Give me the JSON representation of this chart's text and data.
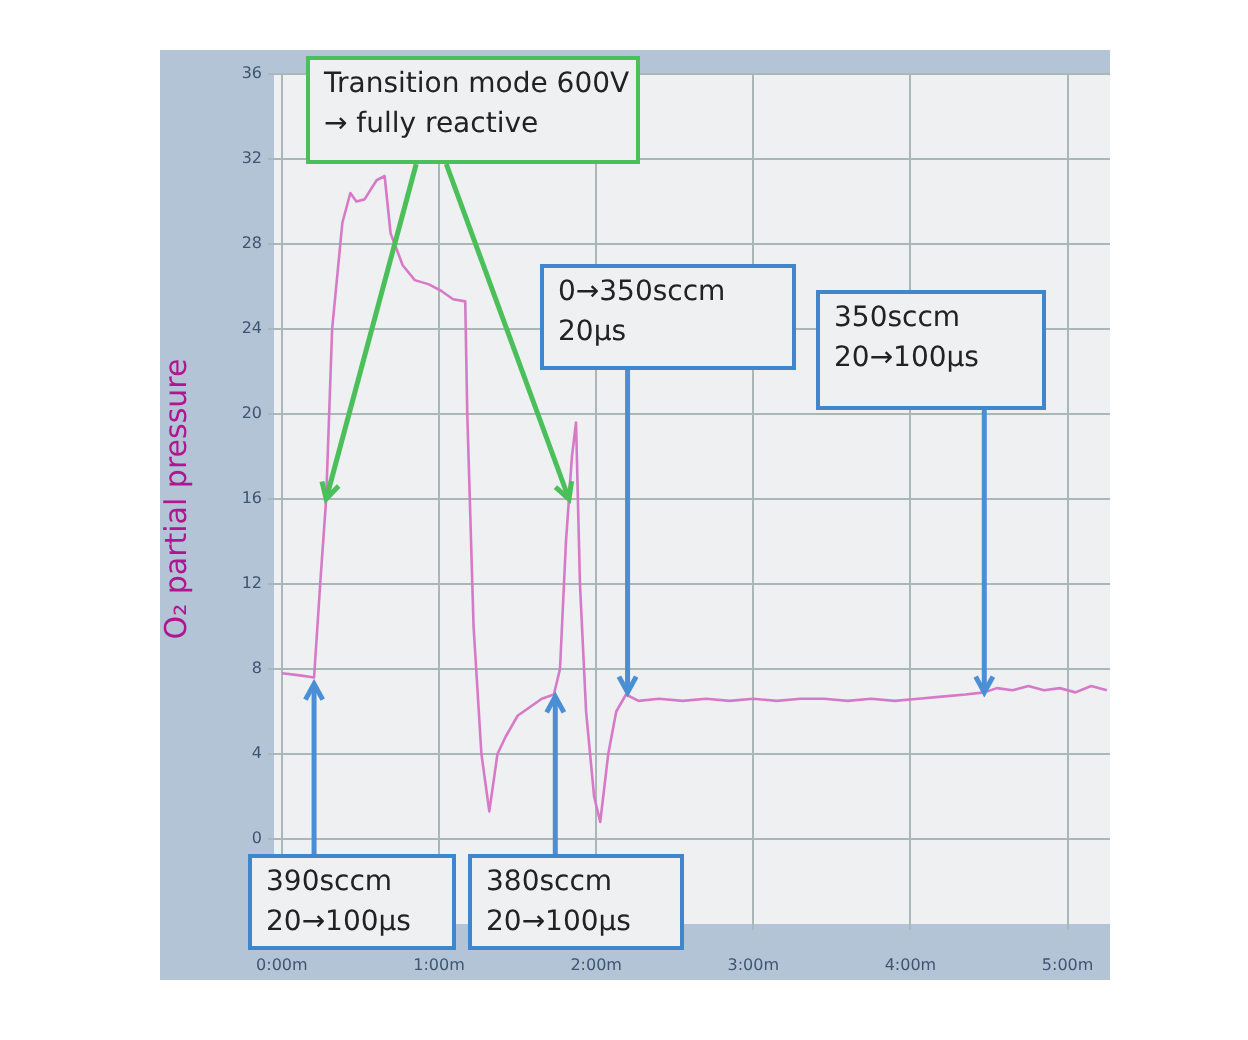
{
  "chart_data": {
    "type": "line",
    "ylabel": "O₂ partial pressure",
    "x": [
      0,
      0.115,
      0.205,
      0.244,
      0.282,
      0.32,
      0.385,
      0.436,
      0.474,
      0.526,
      0.603,
      0.654,
      0.692,
      0.769,
      0.846,
      0.936,
      1.013,
      1.09,
      1.167,
      1.18,
      1.22,
      1.27,
      1.32,
      1.372,
      1.423,
      1.5,
      1.577,
      1.654,
      1.731,
      1.77,
      1.808,
      1.846,
      1.872,
      1.897,
      1.936,
      1.987,
      2.026,
      2.077,
      2.128,
      2.19,
      2.27,
      2.4,
      2.55,
      2.7,
      2.85,
      3.0,
      3.15,
      3.3,
      3.45,
      3.6,
      3.75,
      3.9,
      4.05,
      4.2,
      4.35,
      4.47,
      4.55,
      4.65,
      4.75,
      4.85,
      4.95,
      5.05,
      5.15,
      5.25
    ],
    "series": [
      {
        "color": "#d67ac8",
        "values": [
          7.8,
          7.7,
          7.6,
          12,
          16,
          24,
          29,
          30.4,
          30,
          30.1,
          31,
          31.2,
          28.5,
          27,
          26.3,
          26.1,
          25.8,
          25.4,
          25.3,
          20,
          10,
          4,
          1.3,
          4,
          4.8,
          5.8,
          6.2,
          6.6,
          6.8,
          8,
          14,
          18,
          19.6,
          12,
          6,
          2,
          0.8,
          4,
          6,
          6.8,
          6.5,
          6.6,
          6.5,
          6.6,
          6.5,
          6.6,
          6.5,
          6.6,
          6.6,
          6.5,
          6.6,
          6.5,
          6.6,
          6.7,
          6.8,
          6.9,
          7.1,
          7.0,
          7.2,
          7.0,
          7.1,
          6.9,
          7.2,
          7.0
        ]
      }
    ],
    "xlim": [
      -0.05,
      5.27
    ],
    "ylim": [
      -4,
      36
    ],
    "xticks": [
      {
        "value": 0,
        "label": "0:00m"
      },
      {
        "value": 1,
        "label": "1:00m"
      },
      {
        "value": 2,
        "label": "2:00m"
      },
      {
        "value": 3,
        "label": "3:00m"
      },
      {
        "value": 4,
        "label": "4:00m"
      },
      {
        "value": 5,
        "label": "5:00m"
      }
    ],
    "yticks": [
      0,
      4,
      8,
      12,
      16,
      20,
      24,
      28,
      32,
      36
    ],
    "grid": true,
    "legend": false,
    "marker": "none",
    "line_style": "solid",
    "annotations": [
      {
        "text": "Transition mode 600V\n→ fully reactive",
        "x": 0.282,
        "y": 16
      },
      {
        "text": "0→350sccm\n20µs",
        "x": 2.2,
        "y": 6.9
      },
      {
        "text": "350sccm\n20→100µs",
        "x": 4.47,
        "y": 6.9
      },
      {
        "text": "390sccm\n20→100µs",
        "x": 0.205,
        "y": 7.3
      },
      {
        "text": "380sccm\n20→100µs",
        "x": 1.74,
        "y": 6.7
      }
    ]
  }
}
